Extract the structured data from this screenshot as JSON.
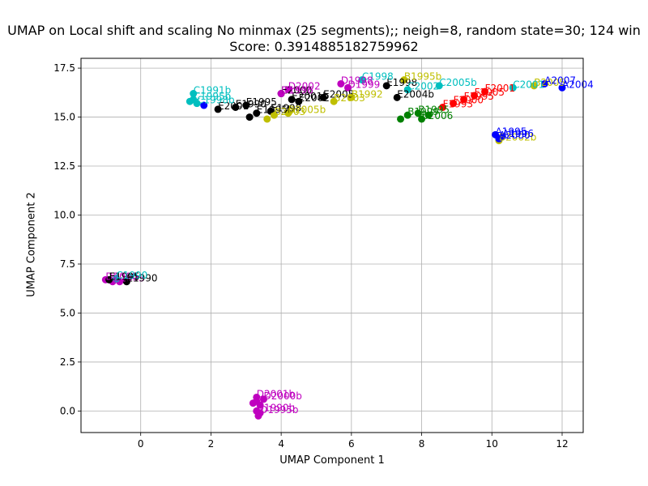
{
  "chart_data": {
    "type": "scatter",
    "title_line1": "UMAP on Local shift and scaling No minmax (25 segments);; neigh=8, random state=30; 124 win",
    "title_line2": "Score: 0.3914885182759962",
    "xlabel": "UMAP Component 1",
    "ylabel": "UMAP Component 2",
    "xlim": [
      -1.7,
      12.6
    ],
    "ylim": [
      -1.1,
      18.0
    ],
    "xticks": [
      0,
      2,
      4,
      6,
      8,
      10,
      12
    ],
    "yticks": [
      0.0,
      2.5,
      5.0,
      7.5,
      10.0,
      12.5,
      15.0,
      17.5
    ],
    "xtick_labels": [
      "0",
      "2",
      "4",
      "6",
      "8",
      "10",
      "12"
    ],
    "ytick_labels": [
      "0.0",
      "2.5",
      "5.0",
      "7.5",
      "10.0",
      "12.5",
      "15.0",
      "17.5"
    ],
    "grid": true,
    "colors": {
      "blue": "#0000ff",
      "green": "#008000",
      "red": "#ff0000",
      "cyan": "#00bfbf",
      "magenta": "#bf00bf",
      "olive": "#bfbf00",
      "black": "#000000"
    },
    "points": [
      {
        "x": 3.3,
        "y": 0.7,
        "c": "magenta",
        "label": "D2001b"
      },
      {
        "x": 3.3,
        "y": 0.5,
        "c": "magenta",
        "label": ""
      },
      {
        "x": 3.5,
        "y": 0.6,
        "c": "magenta",
        "label": "D2000b"
      },
      {
        "x": 3.2,
        "y": 0.4,
        "c": "magenta",
        "label": ""
      },
      {
        "x": 3.4,
        "y": 0.3,
        "c": "magenta",
        "label": ""
      },
      {
        "x": 3.3,
        "y": 0.0,
        "c": "magenta",
        "label": "D1990b"
      },
      {
        "x": 3.4,
        "y": -0.1,
        "c": "magenta",
        "label": "D1995b"
      },
      {
        "x": 3.35,
        "y": -0.25,
        "c": "magenta",
        "label": ""
      },
      {
        "x": -1.0,
        "y": 6.7,
        "c": "magenta",
        "label": "D2000"
      },
      {
        "x": -0.8,
        "y": 6.6,
        "c": "magenta",
        "label": "D1995"
      },
      {
        "x": -0.6,
        "y": 6.6,
        "c": "magenta",
        "label": ""
      },
      {
        "x": -0.9,
        "y": 6.7,
        "c": "black",
        "label": "E1995"
      },
      {
        "x": -0.4,
        "y": 6.6,
        "c": "black",
        "label": "E1990"
      },
      {
        "x": -0.7,
        "y": 6.75,
        "c": "cyan",
        "label": "C1990"
      },
      {
        "x": 2.2,
        "y": 15.4,
        "c": "black",
        "label": "E2001"
      },
      {
        "x": 2.7,
        "y": 15.5,
        "c": "black",
        "label": "E1990"
      },
      {
        "x": 3.0,
        "y": 15.6,
        "c": "black",
        "label": "E1995"
      },
      {
        "x": 3.3,
        "y": 15.2,
        "c": "black",
        "label": "E1995b"
      },
      {
        "x": 3.1,
        "y": 15.0,
        "c": "black",
        "label": ""
      },
      {
        "x": 3.7,
        "y": 15.3,
        "c": "black",
        "label": "E1998"
      },
      {
        "x": 4.0,
        "y": 16.2,
        "c": "black",
        "label": "E2000"
      },
      {
        "x": 4.3,
        "y": 15.9,
        "c": "black",
        "label": "E2001b"
      },
      {
        "x": 4.5,
        "y": 15.8,
        "c": "black",
        "label": "E2002"
      },
      {
        "x": 5.2,
        "y": 16.0,
        "c": "black",
        "label": "E2005"
      },
      {
        "x": 7.0,
        "y": 16.6,
        "c": "black",
        "label": "E1998"
      },
      {
        "x": 7.3,
        "y": 16.0,
        "c": "black",
        "label": "E2004b"
      },
      {
        "x": 3.6,
        "y": 14.9,
        "c": "olive",
        "label": ""
      },
      {
        "x": 3.8,
        "y": 15.1,
        "c": "olive",
        "label": "B2003"
      },
      {
        "x": 4.2,
        "y": 15.2,
        "c": "olive",
        "label": "B2005b"
      },
      {
        "x": 5.5,
        "y": 15.8,
        "c": "olive",
        "label": "B2003"
      },
      {
        "x": 6.0,
        "y": 16.0,
        "c": "olive",
        "label": "B1992"
      },
      {
        "x": 7.5,
        "y": 16.9,
        "c": "olive",
        "label": "B1995b"
      },
      {
        "x": 10.2,
        "y": 13.8,
        "c": "olive",
        "label": "B2002b"
      },
      {
        "x": 11.2,
        "y": 16.6,
        "c": "olive",
        "label": "B2005"
      },
      {
        "x": 1.5,
        "y": 16.2,
        "c": "cyan",
        "label": "C1991b"
      },
      {
        "x": 1.5,
        "y": 15.9,
        "c": "cyan",
        "label": "C1995b"
      },
      {
        "x": 1.6,
        "y": 15.7,
        "c": "cyan",
        "label": "C1998b"
      },
      {
        "x": 1.4,
        "y": 15.8,
        "c": "cyan",
        "label": ""
      },
      {
        "x": 6.3,
        "y": 16.9,
        "c": "cyan",
        "label": "C1998"
      },
      {
        "x": 7.6,
        "y": 16.4,
        "c": "cyan",
        "label": "C2002"
      },
      {
        "x": 8.5,
        "y": 16.6,
        "c": "cyan",
        "label": "C2005b"
      },
      {
        "x": 10.6,
        "y": 16.5,
        "c": "cyan",
        "label": "C2001"
      },
      {
        "x": 1.8,
        "y": 15.6,
        "c": "blue",
        "label": ""
      },
      {
        "x": 11.5,
        "y": 16.7,
        "c": "blue",
        "label": "A2007"
      },
      {
        "x": 12.0,
        "y": 16.5,
        "c": "blue",
        "label": "A2004"
      },
      {
        "x": 10.1,
        "y": 14.1,
        "c": "blue",
        "label": "A1995"
      },
      {
        "x": 10.3,
        "y": 14.0,
        "c": "blue",
        "label": "A1996"
      },
      {
        "x": 10.2,
        "y": 13.9,
        "c": "blue",
        "label": "A2000"
      },
      {
        "x": 4.2,
        "y": 16.4,
        "c": "magenta",
        "label": "D2002"
      },
      {
        "x": 4.0,
        "y": 16.2,
        "c": "magenta",
        "label": "D1996"
      },
      {
        "x": 5.7,
        "y": 16.7,
        "c": "magenta",
        "label": "D1998"
      },
      {
        "x": 5.9,
        "y": 16.5,
        "c": "magenta",
        "label": "D1999"
      },
      {
        "x": 7.4,
        "y": 14.9,
        "c": "green",
        "label": ""
      },
      {
        "x": 7.6,
        "y": 15.1,
        "c": "green",
        "label": "B1999"
      },
      {
        "x": 7.9,
        "y": 15.2,
        "c": "green",
        "label": "B1995"
      },
      {
        "x": 8.0,
        "y": 14.9,
        "c": "green",
        "label": "B2006"
      },
      {
        "x": 8.2,
        "y": 15.1,
        "c": "green",
        "label": ""
      },
      {
        "x": 8.6,
        "y": 15.5,
        "c": "red",
        "label": "F1993"
      },
      {
        "x": 8.9,
        "y": 15.7,
        "c": "red",
        "label": "F2000"
      },
      {
        "x": 9.2,
        "y": 15.9,
        "c": "red",
        "label": "F1995"
      },
      {
        "x": 9.5,
        "y": 16.1,
        "c": "red",
        "label": "F2005"
      },
      {
        "x": 9.8,
        "y": 16.3,
        "c": "red",
        "label": "F2001"
      }
    ]
  }
}
